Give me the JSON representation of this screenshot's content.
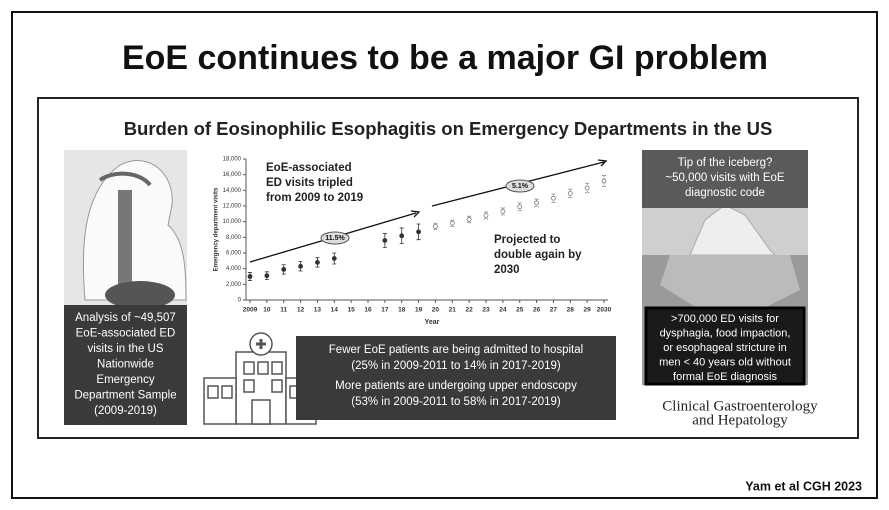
{
  "title": "EoE continues to be a major GI problem",
  "subtitle": "Burden of Eosinophilic Esophagitis on Emergency Departments in the US",
  "left_panel": {
    "lines": [
      "Analysis of ~49,507",
      "EoE-associated ED",
      "visits in the US",
      "Nationwide",
      "Emergency",
      "Department Sample",
      "(2009-2019)"
    ]
  },
  "chart_data": {
    "type": "line",
    "ylabel": "Emergency department visits",
    "xlabel": "Year",
    "x": [
      2009,
      2010,
      2011,
      2012,
      2013,
      2014,
      2015,
      2016,
      2017,
      2018,
      2019,
      2020,
      2021,
      2022,
      2023,
      2024,
      2025,
      2026,
      2027,
      2028,
      2029,
      2030
    ],
    "series": [
      {
        "color": "#333333",
        "dashed": false,
        "values": [
          3000,
          3100,
          3900,
          4300,
          4800,
          5300,
          null,
          null,
          7600,
          8200,
          8700,
          null,
          null,
          null,
          null,
          null,
          null,
          null,
          null,
          null,
          null,
          null
        ],
        "errors": [
          500,
          500,
          600,
          600,
          600,
          700,
          null,
          null,
          900,
          1000,
          1000,
          null,
          null,
          null,
          null,
          null,
          null,
          null,
          null,
          null,
          null,
          null
        ]
      },
      {
        "color": "#777777",
        "dashed": true,
        "values": [
          null,
          null,
          null,
          null,
          null,
          null,
          null,
          null,
          null,
          null,
          null,
          9400,
          9800,
          10300,
          10800,
          11300,
          11900,
          12400,
          13000,
          13600,
          14300,
          15200
        ],
        "errors": [
          null,
          null,
          null,
          null,
          null,
          null,
          null,
          null,
          null,
          null,
          null,
          400,
          400,
          400,
          450,
          450,
          500,
          500,
          550,
          550,
          600,
          700
        ]
      }
    ],
    "xlim": [
      2009,
      2030
    ],
    "xticks": [
      2009,
      {
        "value": 2010,
        "label": "10"
      },
      {
        "value": 2011,
        "label": "11"
      },
      {
        "value": 2012,
        "label": "12"
      },
      {
        "value": 2013,
        "label": "13"
      },
      {
        "value": 2014,
        "label": "14"
      },
      {
        "value": 2015,
        "label": "15"
      },
      {
        "value": 2016,
        "label": "16"
      },
      {
        "value": 2017,
        "label": "17"
      },
      {
        "value": 2018,
        "label": "18"
      },
      {
        "value": 2019,
        "label": "19"
      },
      {
        "value": 2020,
        "label": "20"
      },
      {
        "value": 2021,
        "label": "21"
      },
      {
        "value": 2022,
        "label": "22"
      },
      {
        "value": 2023,
        "label": "23"
      },
      {
        "value": 2024,
        "label": "24"
      },
      {
        "value": 2025,
        "label": "25"
      },
      {
        "value": 2026,
        "label": "26"
      },
      {
        "value": 2027,
        "label": "27"
      },
      {
        "value": 2028,
        "label": "28"
      },
      {
        "value": 2029,
        "label": "29"
      },
      2030
    ],
    "ylim": [
      0,
      18000
    ],
    "yticks": [
      0,
      {
        "value": 2000,
        "label": "2,000"
      },
      {
        "value": 4000,
        "label": "4,000"
      },
      {
        "value": 6000,
        "label": "6,000"
      },
      {
        "value": 8000,
        "label": "8,000"
      },
      {
        "value": 10000,
        "label": "10,000"
      },
      {
        "value": 12000,
        "label": "12,000"
      },
      {
        "value": 14000,
        "label": "14,000"
      },
      {
        "value": 16000,
        "label": "16,000"
      },
      {
        "value": 18000,
        "label": "18,000"
      }
    ],
    "trend_labels": [
      "11.5%",
      "5.1%"
    ],
    "annotations": [
      [
        "EoE-associated",
        "ED visits tripled",
        "from 2009 to 2019"
      ],
      [
        "Projected to",
        "double again by",
        "2030"
      ]
    ]
  },
  "findings": [
    "Fewer EoE patients are being admitted to hospital",
    "(25% in 2009-2011 to 14% in 2017-2019)",
    "More patients are undergoing upper endoscopy",
    "(53% in 2009-2011 to 58% in 2017-2019)"
  ],
  "iceberg": {
    "top_lines": [
      "Tip of the iceberg?",
      "~50,000 visits with EoE",
      "diagnostic code"
    ],
    "bottom_lines": [
      ">700,000 ED visits for",
      "dysphagia, food impaction,",
      "or esophageal stricture in",
      "men < 40 years old without",
      "formal EoE diagnosis"
    ]
  },
  "journal": [
    "Clinical Gastroenterology",
    "and Hepatology"
  ],
  "citation": "Yam et al CGH 2023"
}
